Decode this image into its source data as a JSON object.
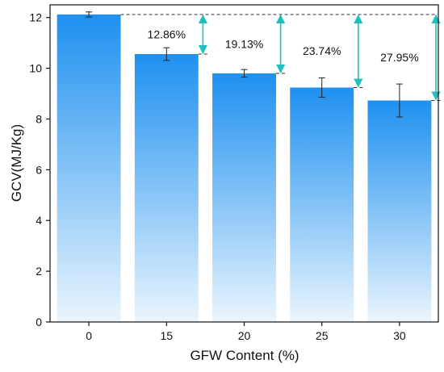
{
  "chart_data": {
    "type": "bar",
    "xlabel": "GFW Content (%)",
    "ylabel": "GCV(MJ/Kg)",
    "categories": [
      "0",
      "15",
      "20",
      "25",
      "30"
    ],
    "values": [
      12.12,
      10.56,
      9.8,
      9.24,
      8.73
    ],
    "errors": [
      0.1,
      0.25,
      0.15,
      0.38,
      0.65
    ],
    "ylim": [
      0,
      12.5
    ],
    "yticks": [
      0,
      2,
      4,
      6,
      8,
      10,
      12
    ],
    "annotations": [
      {
        "category": "15",
        "label": "12.86%"
      },
      {
        "category": "20",
        "label": "19.13%"
      },
      {
        "category": "25",
        "label": "23.74%"
      },
      {
        "category": "30",
        "label": "27.95%"
      }
    ],
    "grid": false,
    "legend": "none",
    "colors": {
      "bar_top": "#1e90f0",
      "bar_bottom": "#eaf5fd",
      "arrow": "#1fbfc0",
      "reference_line": "#333333",
      "axis": "#111111"
    }
  }
}
